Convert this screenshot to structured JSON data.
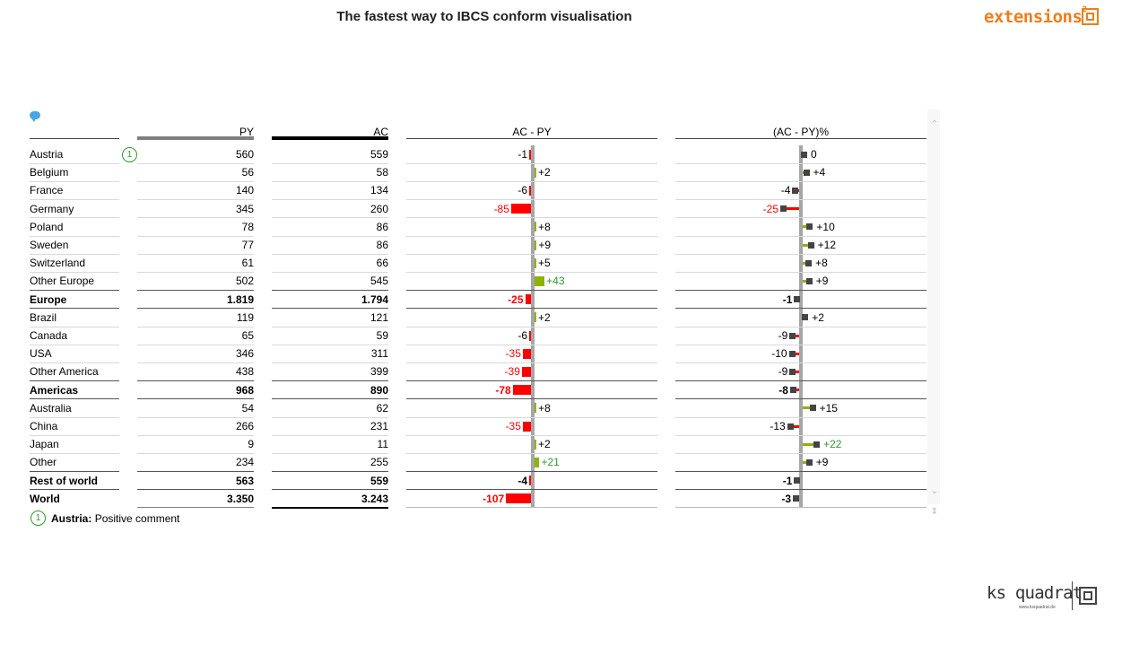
{
  "title": "The fastest  way to IBCS conform visualisation",
  "logo_brand": "extensions",
  "logo_brand_sup": "2",
  "footer_brand": "ks quadrat",
  "footer_url": "www.ksquadrat.de",
  "columns": {
    "py": "PY",
    "ac": "AC",
    "delta": "AC - PY",
    "delta_pct": "(AC - PY)%"
  },
  "note": {
    "marker": "1",
    "country": "Austria:",
    "text": "Positive comment"
  },
  "colors": {
    "positive": "#8cb400",
    "negative": "#ff0000",
    "py_bar": "#808080",
    "ac_bar": "#000000",
    "axis": "#a6a6a6",
    "brand": "#f07d1a"
  },
  "chart_data": {
    "type": "table",
    "columns": [
      "PY",
      "AC",
      "AC - PY",
      "(AC - PY)%"
    ],
    "rows": [
      {
        "label": "Austria",
        "py": "560",
        "ac": "559",
        "delta": -1,
        "delta_label": "-1",
        "pct": 0,
        "pct_label": "0",
        "bold": false,
        "note": "1"
      },
      {
        "label": "Belgium",
        "py": "56",
        "ac": "58",
        "delta": 2,
        "delta_label": "+2",
        "pct": 4,
        "pct_label": "+4",
        "bold": false
      },
      {
        "label": "France",
        "py": "140",
        "ac": "134",
        "delta": -6,
        "delta_label": "-6",
        "pct": -4,
        "pct_label": "-4",
        "bold": false
      },
      {
        "label": "Germany",
        "py": "345",
        "ac": "260",
        "delta": -85,
        "delta_label": "-85",
        "pct": -25,
        "pct_label": "-25",
        "bold": false
      },
      {
        "label": "Poland",
        "py": "78",
        "ac": "86",
        "delta": 8,
        "delta_label": "+8",
        "pct": 10,
        "pct_label": "+10",
        "bold": false
      },
      {
        "label": "Sweden",
        "py": "77",
        "ac": "86",
        "delta": 9,
        "delta_label": "+9",
        "pct": 12,
        "pct_label": "+12",
        "bold": false
      },
      {
        "label": "Switzerland",
        "py": "61",
        "ac": "66",
        "delta": 5,
        "delta_label": "+5",
        "pct": 8,
        "pct_label": "+8",
        "bold": false
      },
      {
        "label": "Other Europe",
        "py": "502",
        "ac": "545",
        "delta": 43,
        "delta_label": "+43",
        "pct": 9,
        "pct_label": "+9",
        "bold": false
      },
      {
        "label": "Europe",
        "py": "1.819",
        "ac": "1.794",
        "delta": -25,
        "delta_label": "-25",
        "pct": -1,
        "pct_label": "-1",
        "bold": true
      },
      {
        "label": "Brazil",
        "py": "119",
        "ac": "121",
        "delta": 2,
        "delta_label": "+2",
        "pct": 2,
        "pct_label": "+2",
        "bold": false
      },
      {
        "label": "Canada",
        "py": "65",
        "ac": "59",
        "delta": -6,
        "delta_label": "-6",
        "pct": -9,
        "pct_label": "-9",
        "bold": false
      },
      {
        "label": "USA",
        "py": "346",
        "ac": "311",
        "delta": -35,
        "delta_label": "-35",
        "pct": -10,
        "pct_label": "-10",
        "bold": false
      },
      {
        "label": "Other America",
        "py": "438",
        "ac": "399",
        "delta": -39,
        "delta_label": "-39",
        "pct": -9,
        "pct_label": "-9",
        "bold": false
      },
      {
        "label": "Americas",
        "py": "968",
        "ac": "890",
        "delta": -78,
        "delta_label": "-78",
        "pct": -8,
        "pct_label": "-8",
        "bold": true
      },
      {
        "label": "Australia",
        "py": "54",
        "ac": "62",
        "delta": 8,
        "delta_label": "+8",
        "pct": 15,
        "pct_label": "+15",
        "bold": false
      },
      {
        "label": "China",
        "py": "266",
        "ac": "231",
        "delta": -35,
        "delta_label": "-35",
        "pct": -13,
        "pct_label": "-13",
        "bold": false
      },
      {
        "label": "Japan",
        "py": "9",
        "ac": "11",
        "delta": 2,
        "delta_label": "+2",
        "pct": 22,
        "pct_label": "+22",
        "bold": false
      },
      {
        "label": "Other",
        "py": "234",
        "ac": "255",
        "delta": 21,
        "delta_label": "+21",
        "pct": 9,
        "pct_label": "+9",
        "bold": false
      },
      {
        "label": "Rest of world",
        "py": "563",
        "ac": "559",
        "delta": -4,
        "delta_label": "-4",
        "pct": -1,
        "pct_label": "-1",
        "bold": true
      },
      {
        "label": "World",
        "py": "3.350",
        "ac": "3.243",
        "delta": -107,
        "delta_label": "-107",
        "pct": -3,
        "pct_label": "-3",
        "bold": true
      }
    ]
  }
}
